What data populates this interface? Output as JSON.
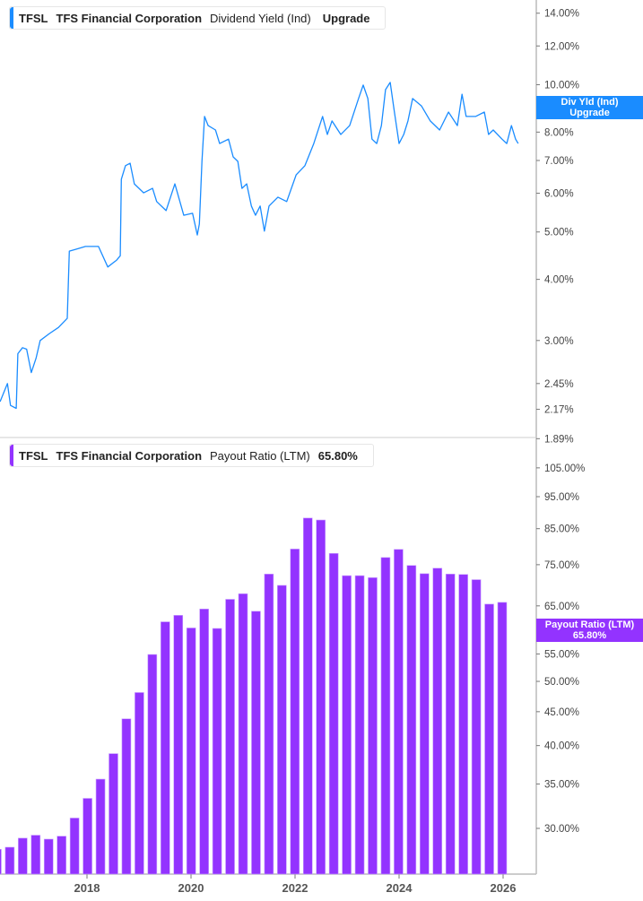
{
  "top_legend": {
    "ticker": "TFSL",
    "company": "TFS Financial Corporation",
    "metric": "Dividend Yield (Ind)",
    "action": "Upgrade",
    "color": "#1a8cff"
  },
  "top_tag": {
    "line1": "Div Yld (Ind)",
    "line2": "Upgrade"
  },
  "bottom_legend": {
    "ticker": "TFSL",
    "company": "TFS Financial Corporation",
    "metric": "Payout Ratio (LTM)",
    "value": "65.80%",
    "color": "#9333ff"
  },
  "bottom_tag": {
    "line1": "Payout Ratio (LTM)",
    "line2": "65.80%"
  },
  "chart_data": [
    {
      "type": "line",
      "scale": "log",
      "series": [
        {
          "name": "Dividend Yield (Ind)",
          "color": "#1a8cff",
          "x": [
            2016.33,
            2016.47,
            2016.53,
            2016.64,
            2016.67,
            2016.76,
            2016.84,
            2016.93,
            2017.02,
            2017.1,
            2017.28,
            2017.45,
            2017.62,
            2017.66,
            2017.79,
            2017.97,
            2018.22,
            2018.4,
            2018.57,
            2018.64,
            2018.66,
            2018.74,
            2018.83,
            2018.91,
            2019.09,
            2019.26,
            2019.34,
            2019.52,
            2019.69,
            2019.86,
            2020.03,
            2020.12,
            2020.16,
            2020.21,
            2020.26,
            2020.33,
            2020.47,
            2020.55,
            2020.72,
            2020.81,
            2020.9,
            2020.98,
            2021.07,
            2021.16,
            2021.24,
            2021.33,
            2021.41,
            2021.5,
            2021.67,
            2021.84,
            2022.02,
            2022.19,
            2022.36,
            2022.53,
            2022.62,
            2022.71,
            2022.88,
            2023.05,
            2023.22,
            2023.31,
            2023.4,
            2023.48,
            2023.57,
            2023.66,
            2023.74,
            2023.83,
            2023.91,
            2024.0,
            2024.09,
            2024.17,
            2024.26,
            2024.43,
            2024.6,
            2024.78,
            2024.95,
            2025.12,
            2025.21,
            2025.29,
            2025.47,
            2025.64,
            2025.72,
            2025.81,
            2025.98,
            2026.07,
            2026.16,
            2026.24,
            2026.29
          ],
          "y": [
            2.25,
            2.45,
            2.21,
            2.18,
            2.82,
            2.9,
            2.88,
            2.58,
            2.76,
            3.0,
            3.1,
            3.19,
            3.33,
            4.57,
            4.61,
            4.67,
            4.67,
            4.24,
            4.38,
            4.47,
            6.41,
            6.83,
            6.91,
            6.27,
            6.01,
            6.14,
            5.77,
            5.53,
            6.27,
            5.41,
            5.46,
            4.93,
            5.19,
            6.97,
            8.61,
            8.25,
            8.08,
            7.58,
            7.74,
            7.12,
            6.97,
            6.14,
            6.27,
            5.65,
            5.41,
            5.65,
            5.02,
            5.65,
            5.89,
            5.77,
            6.54,
            6.83,
            7.58,
            8.61,
            7.91,
            8.43,
            7.91,
            8.25,
            9.37,
            9.98,
            9.37,
            7.74,
            7.58,
            8.25,
            9.77,
            10.11,
            8.79,
            7.58,
            7.91,
            8.43,
            9.37,
            9.05,
            8.43,
            8.08,
            8.79,
            8.25,
            9.56,
            8.61,
            8.61,
            8.79,
            7.91,
            8.08,
            7.74,
            7.58,
            8.25,
            7.74,
            7.58
          ]
        }
      ],
      "y_ticks": [
        "14.00%",
        "12.00%",
        "10.00%",
        "8.00%",
        "7.00%",
        "6.00%",
        "5.00%",
        "4.00%",
        "3.00%",
        "2.45%",
        "2.17%",
        "1.89%"
      ],
      "y_tick_values": [
        14,
        12,
        10,
        8,
        7,
        6,
        5,
        4,
        3,
        2.45,
        2.17,
        1.89
      ]
    },
    {
      "type": "bar",
      "scale": "log",
      "series": [
        {
          "name": "Payout Ratio (LTM)",
          "color": "#9333ff",
          "x": [
            "2016-03",
            "2016-06",
            "2016-09",
            "2016-12",
            "2017-03",
            "2017-06",
            "2017-09",
            "2017-12",
            "2018-03",
            "2018-06",
            "2018-09",
            "2018-12",
            "2019-03",
            "2019-06",
            "2019-09",
            "2019-12",
            "2020-03",
            "2020-06",
            "2020-09",
            "2020-12",
            "2021-03",
            "2021-06",
            "2021-09",
            "2021-12",
            "2022-03",
            "2022-06",
            "2022-09",
            "2022-12",
            "2023-03",
            "2023-06",
            "2023-09",
            "2023-12",
            "2024-03",
            "2024-06",
            "2024-09",
            "2024-12",
            "2025-03",
            "2025-06",
            "2025-09",
            "2025-12"
          ],
          "values": [
            27.9,
            28.1,
            29.0,
            29.3,
            28.9,
            29.2,
            31.1,
            33.3,
            35.6,
            38.9,
            43.9,
            48.1,
            54.9,
            61.5,
            62.9,
            60.2,
            64.3,
            60.1,
            66.5,
            67.8,
            63.8,
            72.6,
            69.8,
            79.2,
            88.2,
            87.6,
            78.0,
            72.2,
            72.2,
            71.7,
            76.9,
            79.1,
            74.8,
            72.7,
            74.1,
            72.6,
            72.5,
            71.2,
            65.4,
            65.8
          ]
        }
      ],
      "y_ticks": [
        "105.00%",
        "95.00%",
        "85.00%",
        "75.00%",
        "65.00%",
        "55.00%",
        "50.00%",
        "45.00%",
        "40.00%",
        "35.00%",
        "30.00%"
      ],
      "y_tick_values": [
        105,
        95,
        85,
        75,
        65,
        55,
        50,
        45,
        40,
        35,
        30
      ],
      "x_ticks": [
        "2018",
        "2020",
        "2022",
        "2024",
        "2026"
      ],
      "x_tick_values": [
        2018,
        2020,
        2022,
        2024,
        2026
      ]
    }
  ]
}
